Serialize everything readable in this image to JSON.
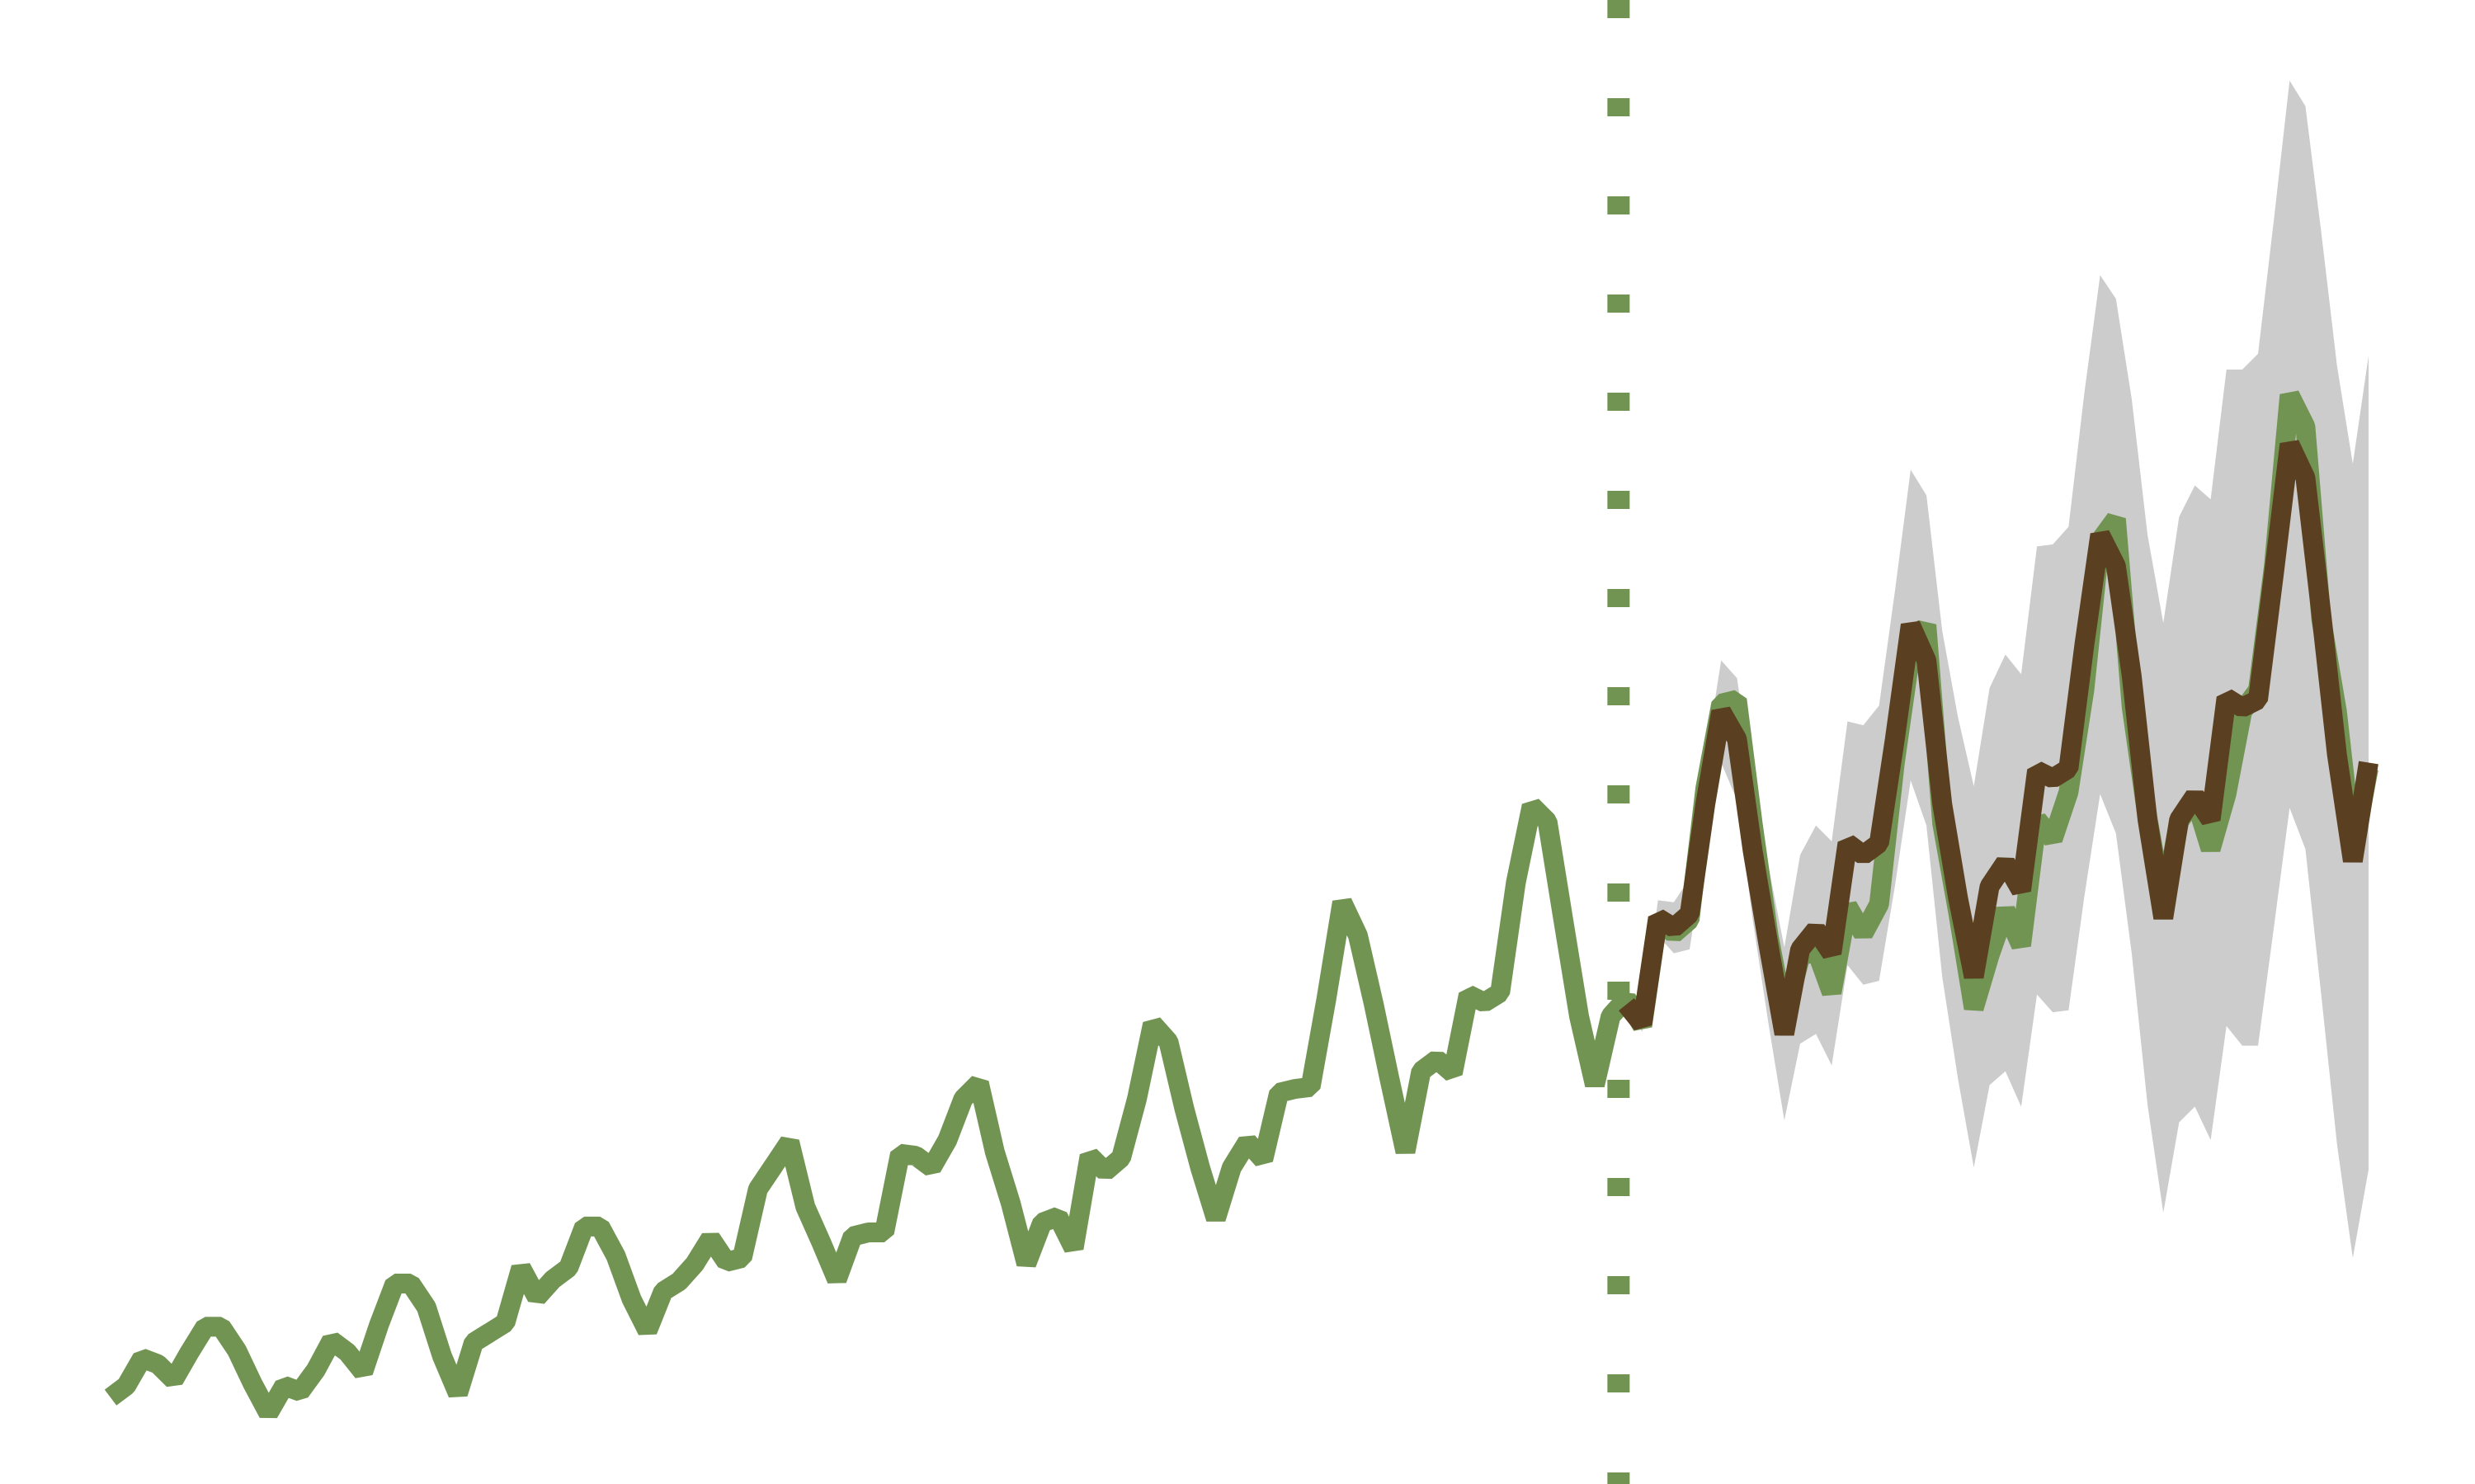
{
  "chart_data": {
    "type": "line",
    "ylim": [
      68,
      823
    ],
    "vline_x": 95.5,
    "vline_color": "#729453",
    "band": {
      "color": "#cccccc",
      "lower": [
        null,
        null,
        null,
        null,
        null,
        null,
        null,
        null,
        null,
        null,
        null,
        null,
        null,
        null,
        null,
        null,
        null,
        null,
        null,
        null,
        null,
        null,
        null,
        null,
        null,
        null,
        null,
        null,
        null,
        null,
        null,
        null,
        null,
        null,
        null,
        null,
        null,
        null,
        null,
        null,
        null,
        null,
        null,
        null,
        null,
        null,
        null,
        null,
        null,
        null,
        null,
        null,
        null,
        null,
        null,
        null,
        null,
        null,
        null,
        null,
        null,
        null,
        null,
        null,
        null,
        null,
        null,
        null,
        null,
        null,
        null,
        null,
        null,
        null,
        null,
        null,
        null,
        null,
        null,
        null,
        null,
        null,
        null,
        null,
        null,
        null,
        null,
        null,
        null,
        null,
        null,
        null,
        null,
        null,
        null,
        null,
        312,
        298,
        347,
        338,
        340,
        392,
        435,
        416,
        355,
        302,
        253,
        292,
        297,
        281,
        332,
        322,
        324,
        372,
        426,
        403,
        326,
        274,
        229,
        271,
        278,
        260,
        317,
        308,
        309,
        367,
        419,
        399,
        338,
        261,
        206,
        252,
        260,
        243,
        301,
        291,
        291,
        351,
        412,
        391,
        317,
        241,
        183,
        228
      ],
      "upper": [
        null,
        null,
        null,
        null,
        null,
        null,
        null,
        null,
        null,
        null,
        null,
        null,
        null,
        null,
        null,
        null,
        null,
        null,
        null,
        null,
        null,
        null,
        null,
        null,
        null,
        null,
        null,
        null,
        null,
        null,
        null,
        null,
        null,
        null,
        null,
        null,
        null,
        null,
        null,
        null,
        null,
        null,
        null,
        null,
        null,
        null,
        null,
        null,
        null,
        null,
        null,
        null,
        null,
        null,
        null,
        null,
        null,
        null,
        null,
        null,
        null,
        null,
        null,
        null,
        null,
        null,
        null,
        null,
        null,
        null,
        null,
        null,
        null,
        null,
        null,
        null,
        null,
        null,
        null,
        null,
        null,
        null,
        null,
        null,
        null,
        null,
        null,
        null,
        null,
        null,
        null,
        null,
        null,
        null,
        null,
        null,
        312,
        306,
        365,
        364,
        376,
        436,
        487,
        478,
        425,
        382,
        341,
        388,
        403,
        395,
        456,
        454,
        464,
        522,
        584,
        571,
        502,
        458,
        423,
        473,
        490,
        480,
        545,
        546,
        555,
        623,
        683,
        671,
        620,
        551,
        506,
        560,
        576,
        569,
        635,
        635,
        643,
        711,
        782,
        769,
        705,
        637,
        587,
        642
      ]
    },
    "series": [
      {
        "color": "#729453",
        "values": [
          112,
          118,
          132,
          129,
          121,
          135,
          148,
          148,
          136,
          119,
          104,
          118,
          115,
          126,
          141,
          135,
          125,
          149,
          170,
          170,
          158,
          133,
          114,
          140,
          145,
          150,
          178,
          163,
          172,
          178,
          199,
          199,
          184,
          162,
          146,
          166,
          171,
          180,
          193,
          181,
          183,
          218,
          230,
          242,
          209,
          191,
          172,
          194,
          196,
          196,
          236,
          235,
          229,
          243,
          264,
          272,
          237,
          211,
          180,
          201,
          204,
          188,
          235,
          227,
          234,
          264,
          302,
          293,
          259,
          229,
          203,
          229,
          242,
          233,
          267,
          269,
          270,
          315,
          364,
          347,
          312,
          274,
          237,
          278,
          284,
          277,
          317,
          313,
          318,
          374,
          413,
          405,
          355,
          306,
          271,
          306,
          315,
          301,
          356,
          348,
          355,
          422,
          465,
          467,
          404,
          347,
          305,
          336,
          340,
          318,
          362,
          348,
          363,
          435,
          491,
          505,
          404,
          359,
          310,
          337,
          360,
          342,
          406,
          396,
          420,
          472,
          548,
          559,
          463,
          407,
          362,
          405,
          417,
          391,
          419,
          461,
          472,
          535,
          622,
          606,
          508,
          461,
          390,
          432
        ]
      },
      {
        "color": "#5a4020",
        "values": [
          null,
          null,
          null,
          null,
          null,
          null,
          null,
          null,
          null,
          null,
          null,
          null,
          null,
          null,
          null,
          null,
          null,
          null,
          null,
          null,
          null,
          null,
          null,
          null,
          null,
          null,
          null,
          null,
          null,
          null,
          null,
          null,
          null,
          null,
          null,
          null,
          null,
          null,
          null,
          null,
          null,
          null,
          null,
          null,
          null,
          null,
          null,
          null,
          null,
          null,
          null,
          null,
          null,
          null,
          null,
          null,
          null,
          null,
          null,
          null,
          null,
          null,
          null,
          null,
          null,
          null,
          null,
          null,
          null,
          null,
          null,
          null,
          null,
          null,
          null,
          null,
          null,
          null,
          null,
          null,
          null,
          null,
          null,
          null,
          null,
          null,
          null,
          null,
          null,
          null,
          null,
          null,
          null,
          null,
          null,
          null,
          312,
          302,
          356,
          351,
          358,
          414,
          461,
          447,
          390,
          342,
          297,
          340,
          350,
          338,
          394,
          388,
          394,
          447,
          505,
          487,
          414,
          366,
          326,
          372,
          384,
          370,
          431,
          427,
          432,
          495,
          551,
          535,
          479,
          406,
          356,
          406,
          418,
          406,
          468,
          463,
          467,
          531,
          597,
          580,
          511,
          439,
          385,
          435
        ]
      }
    ]
  }
}
